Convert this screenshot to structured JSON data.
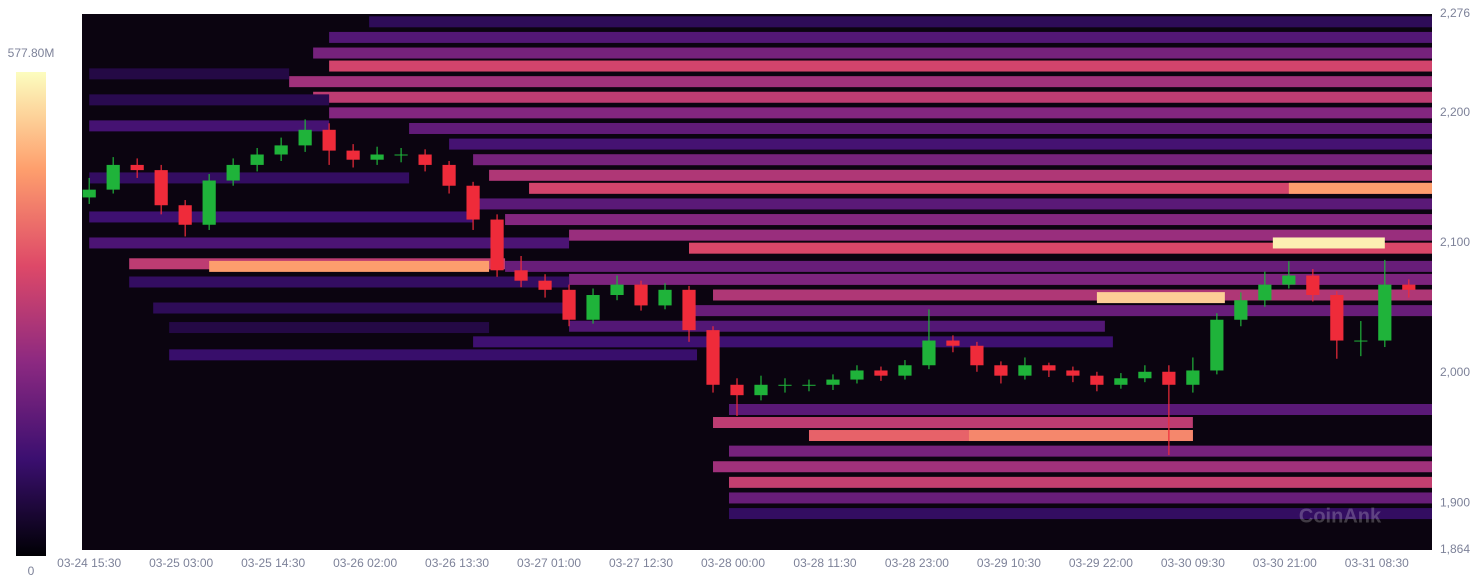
{
  "chart_data": {
    "type": "candlestick-heatmap",
    "watermark": "CoinAnk",
    "up_color": "#1fb33a",
    "down_color": "#ef2b3a",
    "background": "#0b0410",
    "colorscale": [
      "#000004",
      "#3b0f70",
      "#8c2981",
      "#de4968",
      "#fe9f6d",
      "#fcfdbf"
    ],
    "zlim": [
      0,
      577.8
    ],
    "zticks": [
      {
        "value": 577.8,
        "label": "577.80M"
      },
      0
    ],
    "ylim": [
      1864,
      2276
    ],
    "yticks": [
      {
        "value": 1864,
        "label": "1,864"
      },
      {
        "value": 1900,
        "label": "1,900"
      },
      {
        "value": 2000,
        "label": "2,000"
      },
      {
        "value": 2100,
        "label": "2,100"
      },
      {
        "value": 2200,
        "label": "2,200"
      },
      {
        "value": 2276,
        "label": "2,276"
      }
    ],
    "xlim": [
      -0.9,
      167.9
    ],
    "xticks": [
      {
        "value": 0,
        "label": "03-24 15:30"
      },
      {
        "value": 11.5,
        "label": "03-25 03:00"
      },
      {
        "value": 23,
        "label": "03-25 14:30"
      },
      {
        "value": 34.5,
        "label": "03-26 02:00"
      },
      {
        "value": 46,
        "label": "03-26 13:30"
      },
      {
        "value": 57.5,
        "label": "03-27 01:00"
      },
      {
        "value": 69,
        "label": "03-27 12:30"
      },
      {
        "value": 80.5,
        "label": "03-28 00:00"
      },
      {
        "value": 92,
        "label": "03-28 11:30"
      },
      {
        "value": 103.5,
        "label": "03-28 23:00"
      },
      {
        "value": 115,
        "label": "03-29 10:30"
      },
      {
        "value": 126.5,
        "label": "03-29 22:00"
      },
      {
        "value": 138,
        "label": "03-30 09:30"
      },
      {
        "value": 149.5,
        "label": "03-30 21:00"
      },
      {
        "value": 161,
        "label": "03-31 08:30"
      }
    ],
    "heatmap": {
      "price": [
        2270,
        2258,
        2246,
        2236,
        2224,
        2212,
        2200,
        2188,
        2176,
        2164,
        2152,
        2142,
        2130,
        2118,
        2106,
        2096,
        2084,
        2082,
        2072,
        2060,
        2048,
        2036,
        2024,
        2014,
        1972,
        1962,
        1952,
        1940,
        1928,
        1916,
        1904,
        1892,
        2120,
        2100,
        2070,
        2050,
        2035,
        2150,
        2190,
        2210,
        2230,
        2082,
        2142,
        2100,
        2058,
        1952
      ],
      "start": [
        35,
        30,
        28,
        30,
        25,
        28,
        30,
        40,
        45,
        48,
        50,
        55,
        48,
        52,
        60,
        75,
        5,
        52,
        60,
        78,
        75,
        60,
        48,
        10,
        80,
        78,
        90,
        80,
        78,
        80,
        80,
        80,
        0,
        0,
        5,
        8,
        10,
        0,
        0,
        0,
        0,
        15,
        150,
        148,
        126,
        110
      ],
      "end": [
        167.9,
        167.9,
        167.9,
        167.9,
        167.9,
        167.9,
        167.9,
        167.9,
        167.9,
        167.9,
        167.9,
        167.9,
        167.9,
        167.9,
        167.9,
        167.9,
        52,
        167.9,
        167.9,
        167.9,
        167.9,
        127,
        128,
        76,
        167.9,
        138,
        138,
        167.9,
        167.9,
        167.9,
        167.9,
        167.9,
        48,
        60,
        60,
        60,
        50,
        40,
        30,
        30,
        25,
        50,
        167.9,
        162,
        142,
        138
      ],
      "values": [
        90,
        150,
        200,
        330,
        260,
        300,
        220,
        170,
        130,
        200,
        280,
        330,
        160,
        220,
        250,
        340,
        300,
        180,
        210,
        280,
        180,
        150,
        120,
        110,
        160,
        300,
        380,
        200,
        260,
        310,
        180,
        100,
        120,
        140,
        100,
        90,
        70,
        100,
        130,
        80,
        70,
        460,
        460,
        560,
        520,
        430
      ]
    },
    "x": [
      0,
      3,
      6,
      9,
      12,
      15,
      18,
      21,
      24,
      27,
      30,
      33,
      36,
      39,
      42,
      45,
      48,
      51,
      54,
      57,
      60,
      63,
      66,
      69,
      72,
      75,
      78,
      81,
      84,
      87,
      90,
      93,
      96,
      99,
      102,
      105,
      108,
      111,
      114,
      117,
      120,
      123,
      126,
      129,
      132,
      135,
      138,
      141,
      144,
      147,
      150,
      153,
      156,
      159,
      162,
      165
    ],
    "open": [
      2135,
      2141,
      2160,
      2156,
      2129,
      2114,
      2148,
      2160,
      2168,
      2175,
      2187,
      2171,
      2164,
      2168,
      2168,
      2160,
      2144,
      2118,
      2079,
      2071,
      2064,
      2041,
      2060,
      2068,
      2052,
      2064,
      2033,
      1991,
      1983,
      1991,
      1991,
      1991,
      1995,
      2002,
      1998,
      2006,
      2025,
      2021,
      2006,
      1998,
      2006,
      2002,
      1998,
      1991,
      1996,
      2001,
      1991,
      2002,
      2041,
      2056,
      2068,
      2075,
      2060,
      2025,
      2025,
      2068
    ],
    "high": [
      2150,
      2166,
      2165,
      2160,
      2133,
      2153,
      2165,
      2173,
      2181,
      2195,
      2192,
      2176,
      2174,
      2173,
      2172,
      2163,
      2147,
      2122,
      2090,
      2076,
      2068,
      2065,
      2075,
      2071,
      2069,
      2067,
      2036,
      1996,
      1998,
      1996,
      1995,
      1999,
      2006,
      2005,
      2010,
      2049,
      2029,
      2024,
      2009,
      2012,
      2008,
      2005,
      2001,
      2000,
      2006,
      2006,
      2012,
      2046,
      2062,
      2078,
      2086,
      2080,
      2063,
      2040,
      2087,
      2072
    ],
    "low": [
      2130,
      2138,
      2150,
      2122,
      2105,
      2110,
      2144,
      2155,
      2163,
      2170,
      2160,
      2158,
      2160,
      2162,
      2155,
      2138,
      2110,
      2074,
      2066,
      2058,
      2036,
      2038,
      2056,
      2048,
      2049,
      2024,
      1985,
      1967,
      1979,
      1985,
      1986,
      1987,
      1992,
      1994,
      1995,
      2003,
      2016,
      2001,
      1992,
      1995,
      1997,
      1993,
      1986,
      1988,
      1993,
      1937,
      1985,
      1999,
      2036,
      2051,
      2065,
      2055,
      2011,
      2013,
      2020,
      2058
    ],
    "close": [
      2141,
      2160,
      2156,
      2129,
      2114,
      2148,
      2160,
      2168,
      2175,
      2187,
      2171,
      2164,
      2168,
      2168,
      2160,
      2144,
      2118,
      2079,
      2071,
      2064,
      2041,
      2060,
      2068,
      2052,
      2064,
      2033,
      1991,
      1983,
      1991,
      1991,
      1991,
      1995,
      2002,
      1998,
      2006,
      2025,
      2021,
      2006,
      1998,
      2006,
      2002,
      1998,
      1991,
      1996,
      2001,
      1991,
      2002,
      2041,
      2056,
      2068,
      2075,
      2060,
      2025,
      2025,
      2068,
      2064
    ]
  }
}
